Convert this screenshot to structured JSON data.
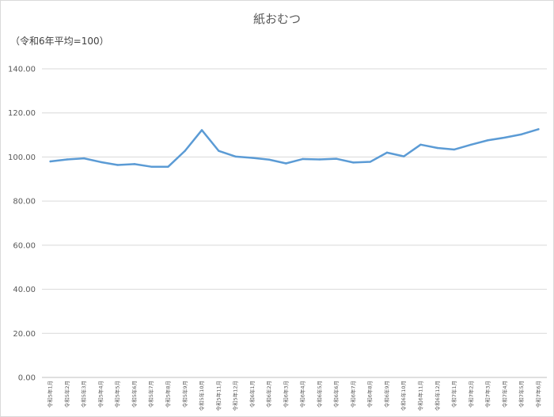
{
  "chart_data": {
    "type": "line",
    "title": "紙おむつ",
    "unit_label": "（令和6年平均=100）",
    "ylim": [
      0,
      140
    ],
    "yticks": [
      "0.00",
      "20.00",
      "40.00",
      "60.00",
      "80.00",
      "100.00",
      "120.00",
      "140.00"
    ],
    "grid": true,
    "legend": "none",
    "line_color": "#5b9bd5",
    "categories": [
      "令和5年1月",
      "令和5年2月",
      "令和5年3月",
      "令和5年4月",
      "令和5年5月",
      "令和5年6月",
      "令和5年7月",
      "令和5年8月",
      "令和5年9月",
      "令和5年10月",
      "令和5年11月",
      "令和5年12月",
      "令和6年1月",
      "令和6年2月",
      "令和6年3月",
      "令和6年4月",
      "令和6年5月",
      "令和6年6月",
      "令和6年7月",
      "令和6年8月",
      "令和6年9月",
      "令和6年10月",
      "令和6年11月",
      "令和6年12月",
      "令和7年1月",
      "令和7年2月",
      "令和7年3月",
      "令和7年4月",
      "令和7年5月",
      "令和7年6月"
    ],
    "values": [
      98.0,
      98.9,
      99.4,
      97.7,
      96.4,
      96.8,
      95.6,
      95.6,
      102.8,
      112.2,
      102.8,
      100.2,
      99.6,
      98.8,
      97.1,
      99.1,
      98.9,
      99.2,
      97.5,
      97.8,
      102.0,
      100.3,
      105.6,
      104.1,
      103.4,
      105.6,
      107.6,
      108.8,
      110.3,
      112.6
    ]
  }
}
